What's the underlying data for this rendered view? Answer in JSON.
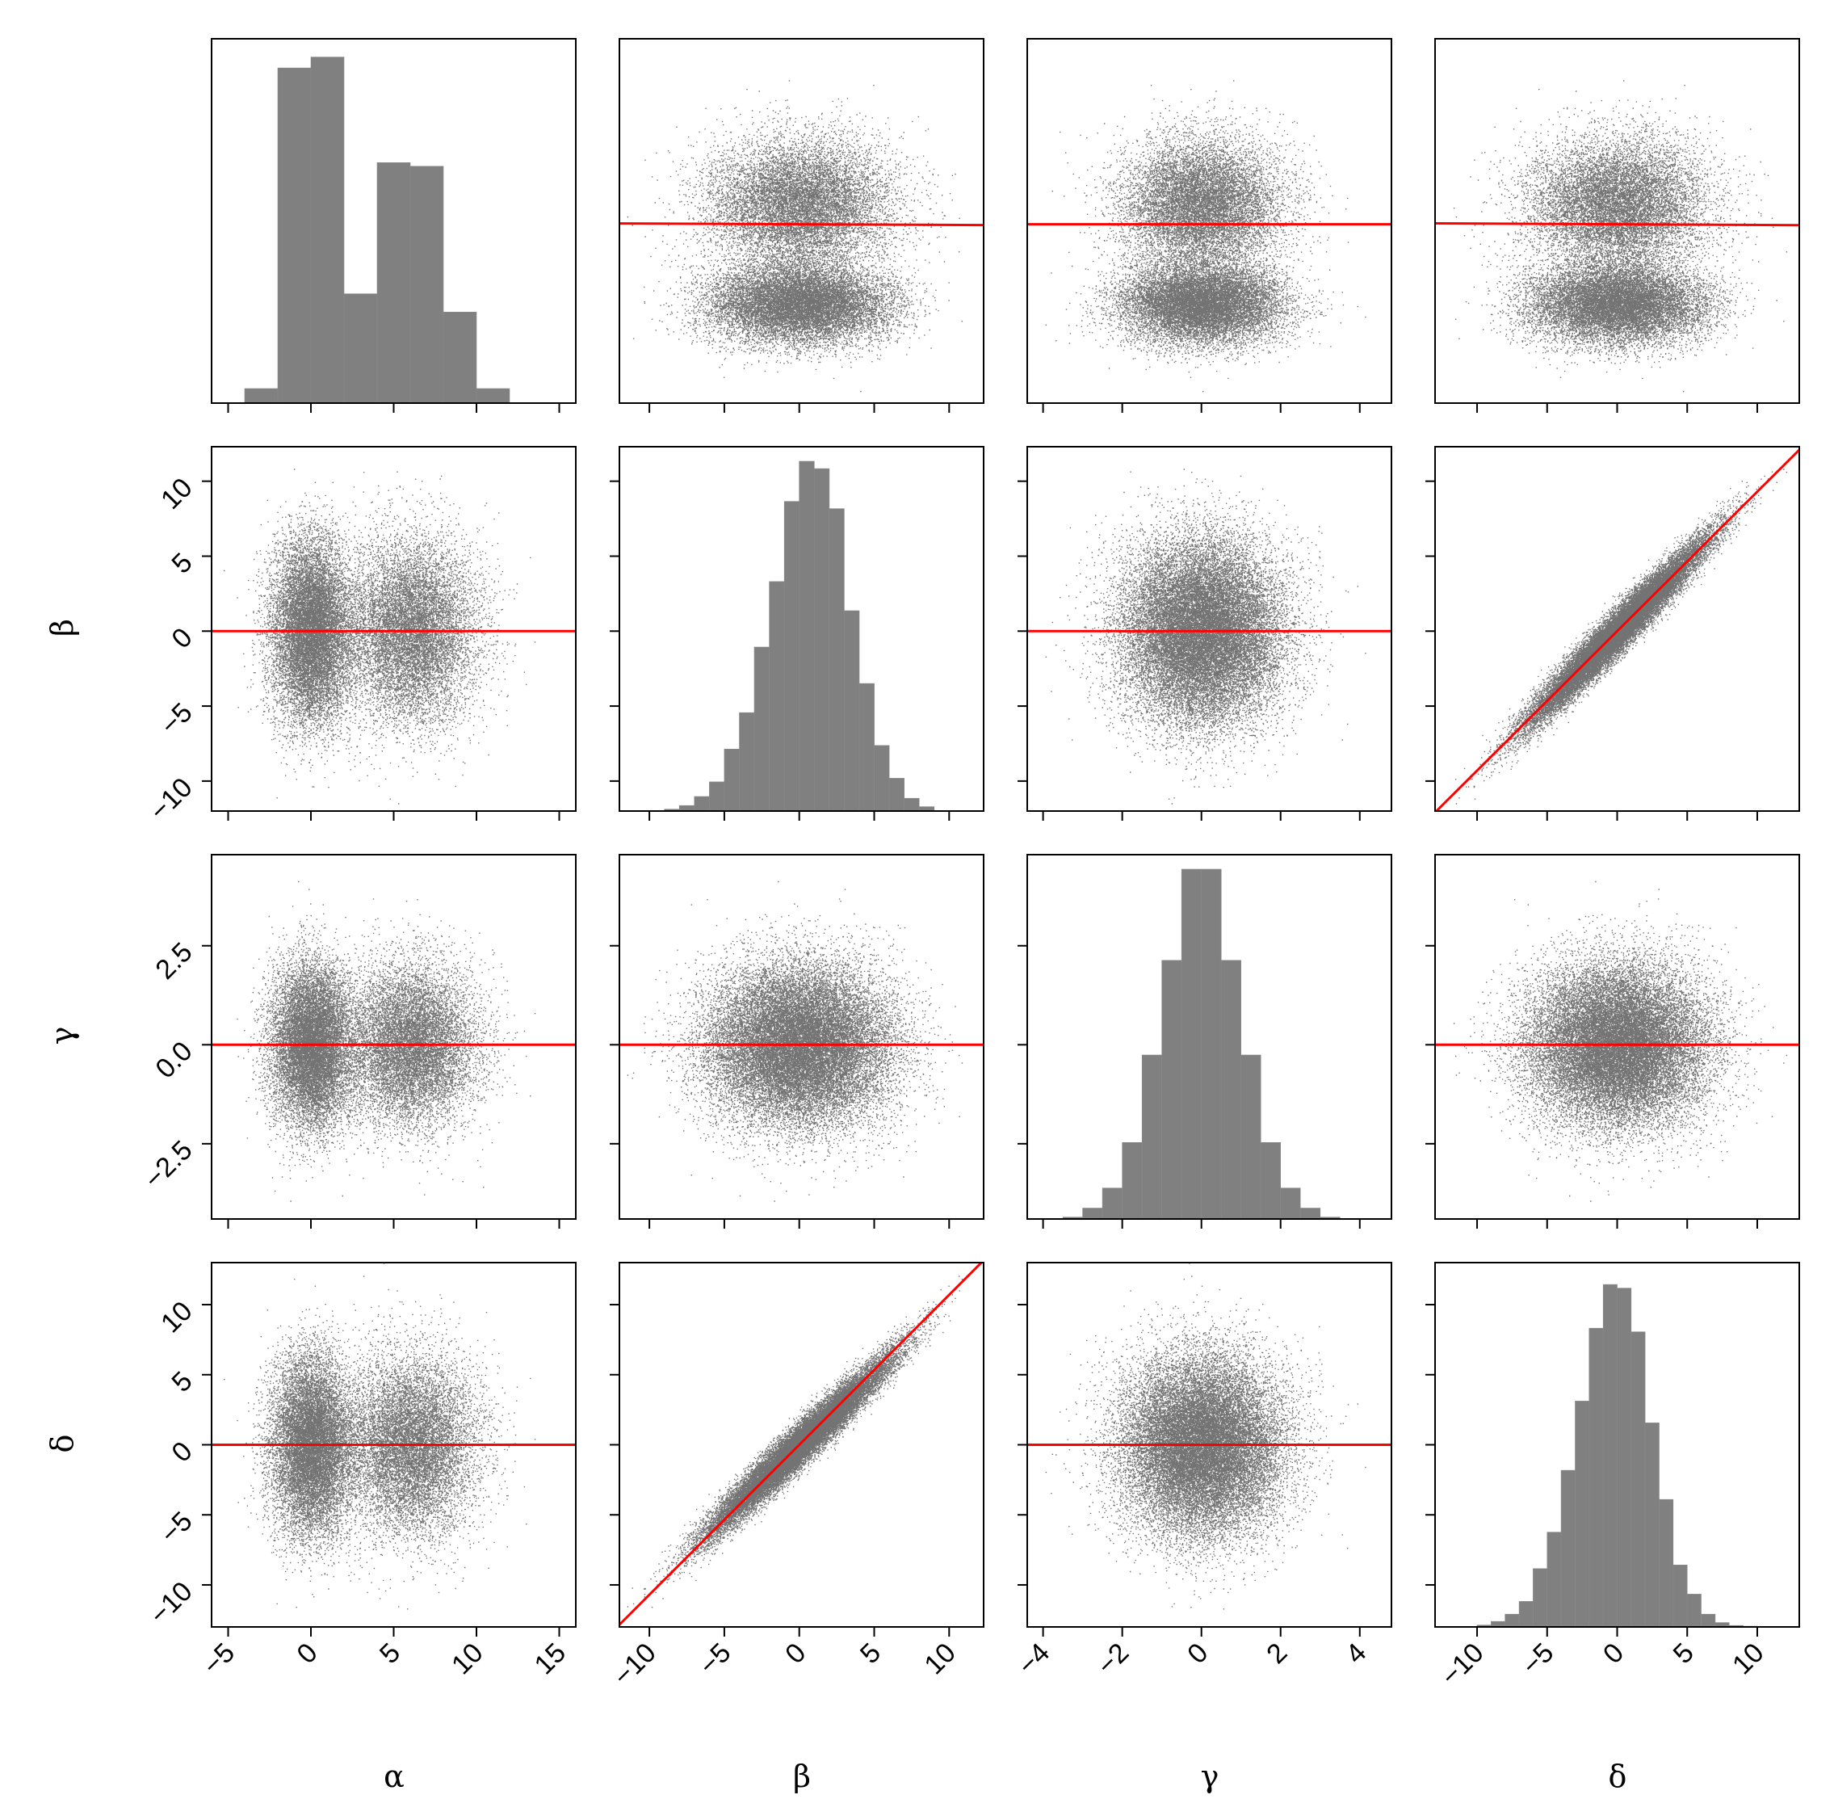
{
  "chart_data": {
    "type": "scatter",
    "layout": "corner-pair-grid",
    "variables": [
      "α",
      "β",
      "γ",
      "δ"
    ],
    "axis_labels": [
      "α",
      "β",
      "γ",
      "δ"
    ],
    "ranges": {
      "α": [
        -6,
        16
      ],
      "β": [
        -12,
        12.3
      ],
      "γ": [
        -4.4,
        4.8
      ],
      "δ": [
        -13,
        13
      ]
    },
    "ticks": {
      "α": [
        -5,
        0,
        5,
        10,
        15
      ],
      "β": [
        -10,
        -5,
        0,
        5,
        10
      ],
      "γ": [
        -4,
        -2,
        0,
        2,
        4
      ],
      "γ_y": [
        -2.5,
        0.0,
        2.5
      ],
      "δ": [
        -10,
        -5,
        0,
        5,
        10
      ]
    },
    "tick_labels": {
      "α": [
        "−5",
        "0",
        "5",
        "10",
        "15"
      ],
      "β": [
        "−10",
        "−5",
        "0",
        "5",
        "10"
      ],
      "γ": [
        "−4",
        "−2",
        "0",
        "2",
        "4"
      ],
      "γ_y": [
        "−2.5",
        "0.0",
        "2.5"
      ],
      "δ": [
        "−10",
        "−5",
        "0",
        "5",
        "10"
      ]
    },
    "histograms": {
      "α": {
        "edges": [
          -4,
          -2,
          0,
          2,
          4,
          6,
          8,
          10,
          12
        ],
        "counts": [
          0.04,
          0.92,
          0.95,
          0.3,
          0.66,
          0.65,
          0.25,
          0.04
        ]
      },
      "β": {
        "edges": [
          -9,
          -8,
          -7,
          -6,
          -5,
          -4,
          -3,
          -2,
          -1,
          0,
          1,
          2,
          3,
          4,
          5,
          6,
          7,
          8,
          9
        ],
        "counts": [
          0.005,
          0.015,
          0.04,
          0.08,
          0.17,
          0.27,
          0.45,
          0.63,
          0.85,
          0.96,
          0.94,
          0.83,
          0.55,
          0.35,
          0.18,
          0.09,
          0.035,
          0.012
        ]
      },
      "γ": {
        "edges": [
          -3.5,
          -3,
          -2.5,
          -2,
          -1.5,
          -1,
          -0.5,
          0,
          0.5,
          1,
          1.5,
          2,
          2.5,
          3,
          3.5
        ],
        "counts": [
          0.005,
          0.03,
          0.085,
          0.21,
          0.45,
          0.71,
          0.96,
          0.96,
          0.71,
          0.45,
          0.21,
          0.085,
          0.03,
          0.005
        ]
      },
      "δ": {
        "edges": [
          -10,
          -9,
          -8,
          -7,
          -6,
          -5,
          -4,
          -3,
          -2,
          -1,
          0,
          1,
          2,
          3,
          4,
          5,
          6,
          7,
          8,
          9,
          10
        ],
        "counts": [
          0.005,
          0.015,
          0.035,
          0.07,
          0.16,
          0.26,
          0.43,
          0.62,
          0.82,
          0.94,
          0.93,
          0.81,
          0.56,
          0.35,
          0.17,
          0.09,
          0.035,
          0.012,
          0.004,
          0.002
        ]
      }
    },
    "fit_lines": [
      {
        "x": "β",
        "y": "α",
        "intercept": 4.8,
        "slope": -0.004
      },
      {
        "x": "γ",
        "y": "α",
        "intercept": 4.8,
        "slope": 0.0
      },
      {
        "x": "δ",
        "y": "α",
        "intercept": 4.8,
        "slope": -0.004
      },
      {
        "x": "α",
        "y": "β",
        "intercept": 0.0,
        "slope": 0.0
      },
      {
        "x": "γ",
        "y": "β",
        "intercept": 0.0,
        "slope": 0.0
      },
      {
        "x": "δ",
        "y": "β",
        "intercept": 0.0,
        "slope": 0.93
      },
      {
        "x": "α",
        "y": "γ",
        "intercept": 0.0,
        "slope": 0.0
      },
      {
        "x": "β",
        "y": "γ",
        "intercept": 0.0,
        "slope": 0.0
      },
      {
        "x": "δ",
        "y": "γ",
        "intercept": 0.0,
        "slope": 0.0
      },
      {
        "x": "α",
        "y": "δ",
        "intercept": 0.0,
        "slope": 0.0
      },
      {
        "x": "β",
        "y": "δ",
        "intercept": 0.0,
        "slope": 1.07
      },
      {
        "x": "γ",
        "y": "δ",
        "intercept": 0.0,
        "slope": 0.0
      }
    ],
    "distributions": {
      "α": {
        "mixture": [
          {
            "weight": 0.55,
            "mean": 0,
            "sd": 1.2
          },
          {
            "weight": 0.45,
            "mean": 6,
            "sd": 2.0
          }
        ]
      },
      "β": {
        "mean": 0,
        "sd": 3.0
      },
      "γ": {
        "mean": 0,
        "sd": 1.0
      },
      "δ": {
        "mean": 0,
        "sd": 3.1,
        "correlated_with": "β",
        "correlation": 0.97
      }
    },
    "colors": {
      "point": "#000000",
      "fit_line": "#ff0000",
      "histogram": "#808080"
    },
    "grid": false,
    "legend": "none"
  }
}
